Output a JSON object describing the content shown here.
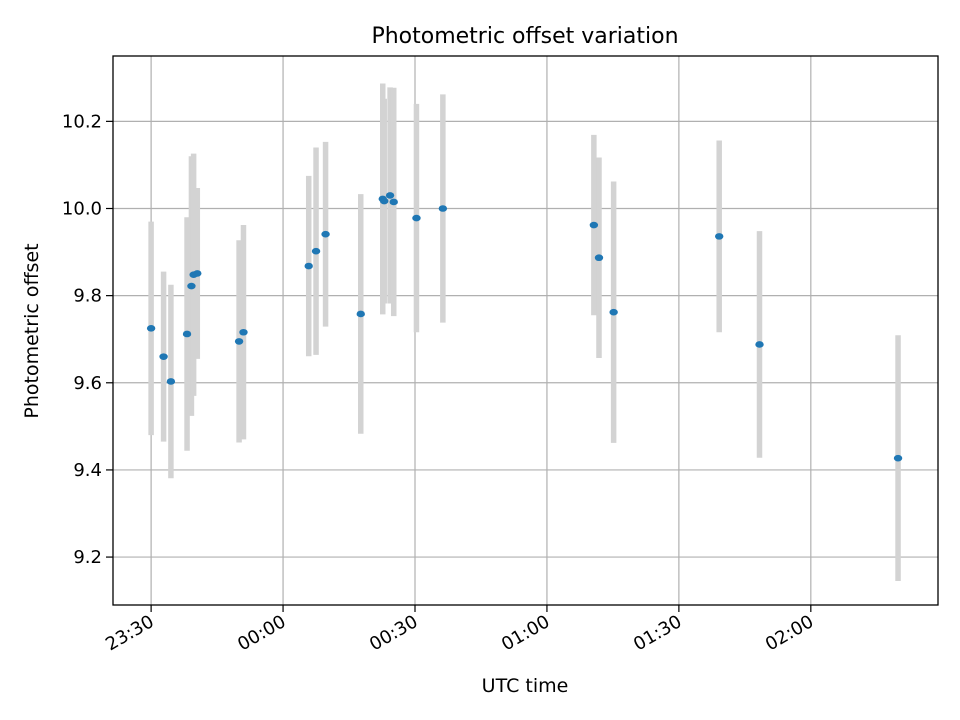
{
  "chart_data": {
    "type": "scatter",
    "title": "Photometric offset variation",
    "xlabel": "UTC time",
    "ylabel": "Photometric offset",
    "x_ticks": [
      "23:30",
      "00:00",
      "00:30",
      "01:00",
      "01:30",
      "02:00"
    ],
    "y_ticks": [
      "9.2",
      "9.4",
      "9.6",
      "9.8",
      "10.0",
      "10.2"
    ],
    "xlim": [
      "23:21:20",
      "02:28:55"
    ],
    "ylim": [
      9.09,
      10.35
    ],
    "grid": true,
    "colors": {
      "point": "#1f77b4",
      "errorbar": "#d3d3d3",
      "grid": "#b0b0b0"
    },
    "points": [
      {
        "x": "23:30:00",
        "y": 9.725,
        "yerr": 0.245
      },
      {
        "x": "23:32:50",
        "y": 9.66,
        "yerr": 0.195
      },
      {
        "x": "23:34:30",
        "y": 9.603,
        "yerr": 0.222
      },
      {
        "x": "23:38:10",
        "y": 9.712,
        "yerr": 0.268
      },
      {
        "x": "23:39:10",
        "y": 9.822,
        "yerr": 0.298
      },
      {
        "x": "23:39:40",
        "y": 9.848,
        "yerr": 0.278
      },
      {
        "x": "23:40:30",
        "y": 9.851,
        "yerr": 0.196
      },
      {
        "x": "23:50:00",
        "y": 9.695,
        "yerr": 0.232
      },
      {
        "x": "23:51:00",
        "y": 9.716,
        "yerr": 0.246
      },
      {
        "x": "00:05:50",
        "y": 9.868,
        "yerr": 0.207
      },
      {
        "x": "00:07:30",
        "y": 9.902,
        "yerr": 0.238
      },
      {
        "x": "00:09:40",
        "y": 9.941,
        "yerr": 0.212
      },
      {
        "x": "00:17:40",
        "y": 9.758,
        "yerr": 0.275
      },
      {
        "x": "00:22:40",
        "y": 10.022,
        "yerr": 0.265
      },
      {
        "x": "00:23:00",
        "y": 10.017,
        "yerr": 0.235
      },
      {
        "x": "00:24:20",
        "y": 10.03,
        "yerr": 0.248
      },
      {
        "x": "00:25:10",
        "y": 10.015,
        "yerr": 0.262
      },
      {
        "x": "00:30:20",
        "y": 9.978,
        "yerr": 0.262
      },
      {
        "x": "00:36:20",
        "y": 10.0,
        "yerr": 0.262
      },
      {
        "x": "01:10:40",
        "y": 9.962,
        "yerr": 0.207
      },
      {
        "x": "01:11:50",
        "y": 9.887,
        "yerr": 0.23
      },
      {
        "x": "01:15:10",
        "y": 9.762,
        "yerr": 0.3
      },
      {
        "x": "01:39:10",
        "y": 9.936,
        "yerr": 0.22
      },
      {
        "x": "01:48:20",
        "y": 9.688,
        "yerr": 0.26
      },
      {
        "x": "02:19:50",
        "y": 9.427,
        "yerr": 0.282
      }
    ]
  }
}
